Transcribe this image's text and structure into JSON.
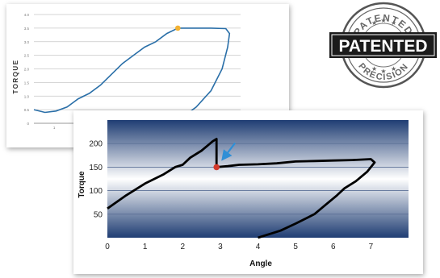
{
  "colors": {
    "back_line": "#2a6fa8",
    "back_marker": "#f2b233",
    "front_line": "#000000",
    "front_marker": "#d33a2c",
    "arrow": "#2f8fd6",
    "front_grad_top": "#1f3d73",
    "front_grad_mid": "#ffffff",
    "stamp_dark": "#1b1b1b"
  },
  "stamp": {
    "top_arc_text": "PATENTED",
    "bottom_arc_text": "PRECISION",
    "banner_text": "PATENTED",
    "icon": "star-icon"
  },
  "chart_data": [
    {
      "type": "line",
      "ylabel": "TORQUE",
      "xlabel": "",
      "ylim": [
        0,
        4.0
      ],
      "y_ticks": [
        "0",
        "0.5",
        "1.0",
        "1.5",
        "2.0",
        "2.5",
        "3.0",
        "3.5",
        "4.0"
      ],
      "x_ticks": [
        "1"
      ],
      "grid": true,
      "series": [
        {
          "points": [
            [
              0.0,
              0.5
            ],
            [
              0.3,
              0.4
            ],
            [
              0.6,
              0.45
            ],
            [
              0.9,
              0.6
            ],
            [
              1.2,
              0.9
            ],
            [
              1.5,
              1.1
            ],
            [
              1.8,
              1.4
            ],
            [
              2.1,
              1.8
            ],
            [
              2.4,
              2.2
            ],
            [
              2.7,
              2.5
            ],
            [
              3.0,
              2.8
            ],
            [
              3.3,
              3.0
            ],
            [
              3.6,
              3.3
            ],
            [
              3.9,
              3.5
            ],
            [
              4.3,
              3.5
            ],
            [
              4.8,
              3.5
            ],
            [
              5.2,
              3.48
            ],
            [
              5.3,
              3.3
            ],
            [
              5.25,
              2.8
            ],
            [
              5.1,
              2.0
            ],
            [
              4.8,
              1.2
            ],
            [
              4.4,
              0.6
            ],
            [
              4.0,
              0.2
            ],
            [
              3.7,
              0.0
            ]
          ],
          "marker": [
            3.9,
            3.5
          ]
        }
      ]
    },
    {
      "type": "line",
      "xlabel": "Angle",
      "ylabel": "Torque",
      "xlim": [
        0,
        8
      ],
      "ylim": [
        0,
        250
      ],
      "x_ticks": [
        "0",
        "1",
        "2",
        "3",
        "4",
        "5",
        "6",
        "7"
      ],
      "y_ticks": [
        "50",
        "100",
        "150",
        "200"
      ],
      "grid": true,
      "annotation": "arrow pointing to peak marker",
      "series": [
        {
          "points": [
            [
              0.0,
              62
            ],
            [
              0.5,
              90
            ],
            [
              1.0,
              115
            ],
            [
              1.5,
              135
            ],
            [
              1.8,
              150
            ],
            [
              2.0,
              155
            ],
            [
              2.2,
              170
            ],
            [
              2.5,
              185
            ],
            [
              2.8,
              205
            ],
            [
              2.9,
              210
            ],
            [
              2.9,
              150
            ],
            [
              3.2,
              152
            ],
            [
              3.5,
              155
            ],
            [
              4.0,
              156
            ],
            [
              4.5,
              158
            ],
            [
              5.0,
              162
            ],
            [
              5.5,
              163
            ],
            [
              6.0,
              164
            ],
            [
              6.5,
              165
            ],
            [
              7.0,
              167
            ],
            [
              7.1,
              160
            ],
            [
              6.9,
              140
            ],
            [
              6.6,
              120
            ],
            [
              6.3,
              105
            ],
            [
              6.1,
              90
            ],
            [
              5.8,
              70
            ],
            [
              5.5,
              50
            ],
            [
              5.0,
              30
            ],
            [
              4.6,
              15
            ],
            [
              4.2,
              5
            ],
            [
              4.0,
              0
            ]
          ],
          "marker": [
            2.9,
            150
          ]
        }
      ]
    }
  ]
}
